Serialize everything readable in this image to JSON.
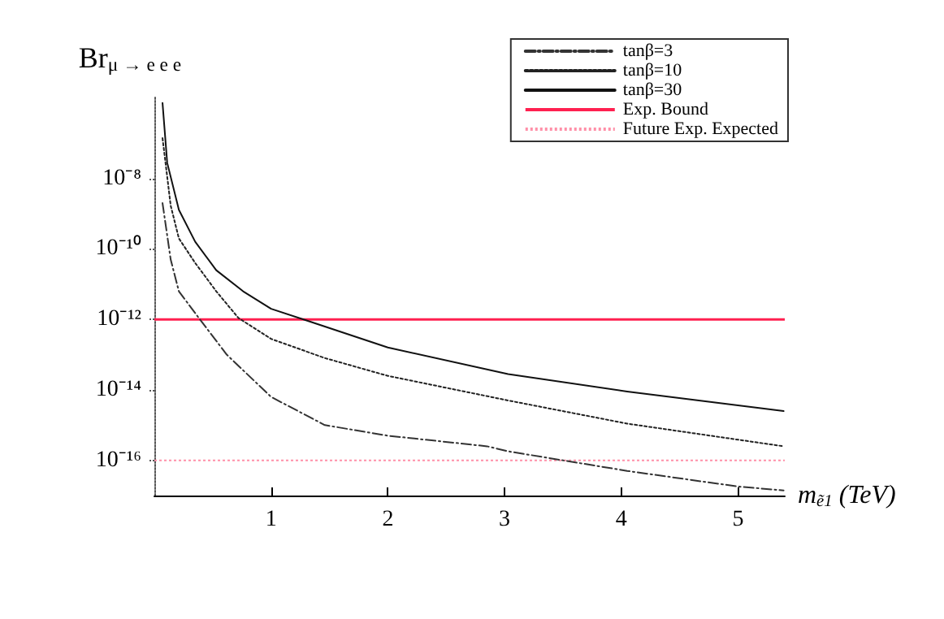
{
  "chart_data": {
    "type": "line",
    "xlabel": "m$_{ẽ1}$ (TeV)",
    "ylabel": "Br$_{μ → e e e}$",
    "log": "y",
    "grid": false,
    "legend": "top right",
    "marker": "none",
    "xlim": [
      0,
      5.4
    ],
    "xticks": [
      1,
      2,
      3,
      4,
      5
    ],
    "ylim": [
      1e-17,
      2e-06
    ],
    "yticks": [
      {
        "value": 1e-08,
        "label": "10⁻⁸"
      },
      {
        "value": 1e-10,
        "label": "10⁻¹⁰"
      },
      {
        "value": 1e-12,
        "label": "10⁻¹²"
      },
      {
        "value": 1e-14,
        "label": "10⁻¹⁴"
      },
      {
        "value": 1e-16,
        "label": "10⁻¹⁶"
      }
    ],
    "series": [
      {
        "name": "tanβ=3",
        "color": "#333333",
        "line_style": "dashed",
        "x": [
          0.07,
          0.14,
          0.21,
          0.39,
          0.62,
          1.0,
          1.46,
          2.0,
          2.85,
          3.03,
          4.05,
          5.0,
          5.39
        ],
        "values": [
          2e-09,
          5e-11,
          6.3e-12,
          1e-12,
          1e-13,
          6.3e-15,
          1e-15,
          5e-16,
          2.5e-16,
          1.8e-16,
          5e-17,
          1.8e-17,
          1.4e-17
        ]
      },
      {
        "name": "tanβ=10",
        "color": "#222222",
        "line_style": "dotted",
        "x": [
          0.07,
          0.14,
          0.21,
          0.35,
          0.53,
          0.72,
          1.0,
          1.46,
          2.0,
          3.03,
          4.05,
          5.39
        ],
        "values": [
          1.4e-07,
          1.7e-09,
          2e-10,
          4e-11,
          6.3e-12,
          1.1e-12,
          2.8e-13,
          8e-14,
          2.5e-14,
          5e-15,
          1.1e-15,
          2.5e-16
        ]
      },
      {
        "name": "tanβ=30",
        "color": "#111111",
        "line_style": "solid",
        "x": [
          0.07,
          0.11,
          0.21,
          0.35,
          0.53,
          0.76,
          1.0,
          1.32,
          2.0,
          3.03,
          4.05,
          5.39
        ],
        "values": [
          1.4e-06,
          2.8e-08,
          1.3e-09,
          1.6e-10,
          2.5e-11,
          6.3e-12,
          2e-12,
          9e-13,
          1.6e-13,
          2.8e-14,
          9e-15,
          2.5e-15
        ]
      }
    ],
    "ref_lines": [
      {
        "axis": "y",
        "value": 1e-12,
        "label": "Exp. Bound",
        "color": "#ff2050",
        "line_style": "solid"
      },
      {
        "axis": "y",
        "value": 1e-16,
        "label": "Future Exp. Expected",
        "color": "#ff90a8",
        "line_style": "dotted"
      }
    ]
  }
}
